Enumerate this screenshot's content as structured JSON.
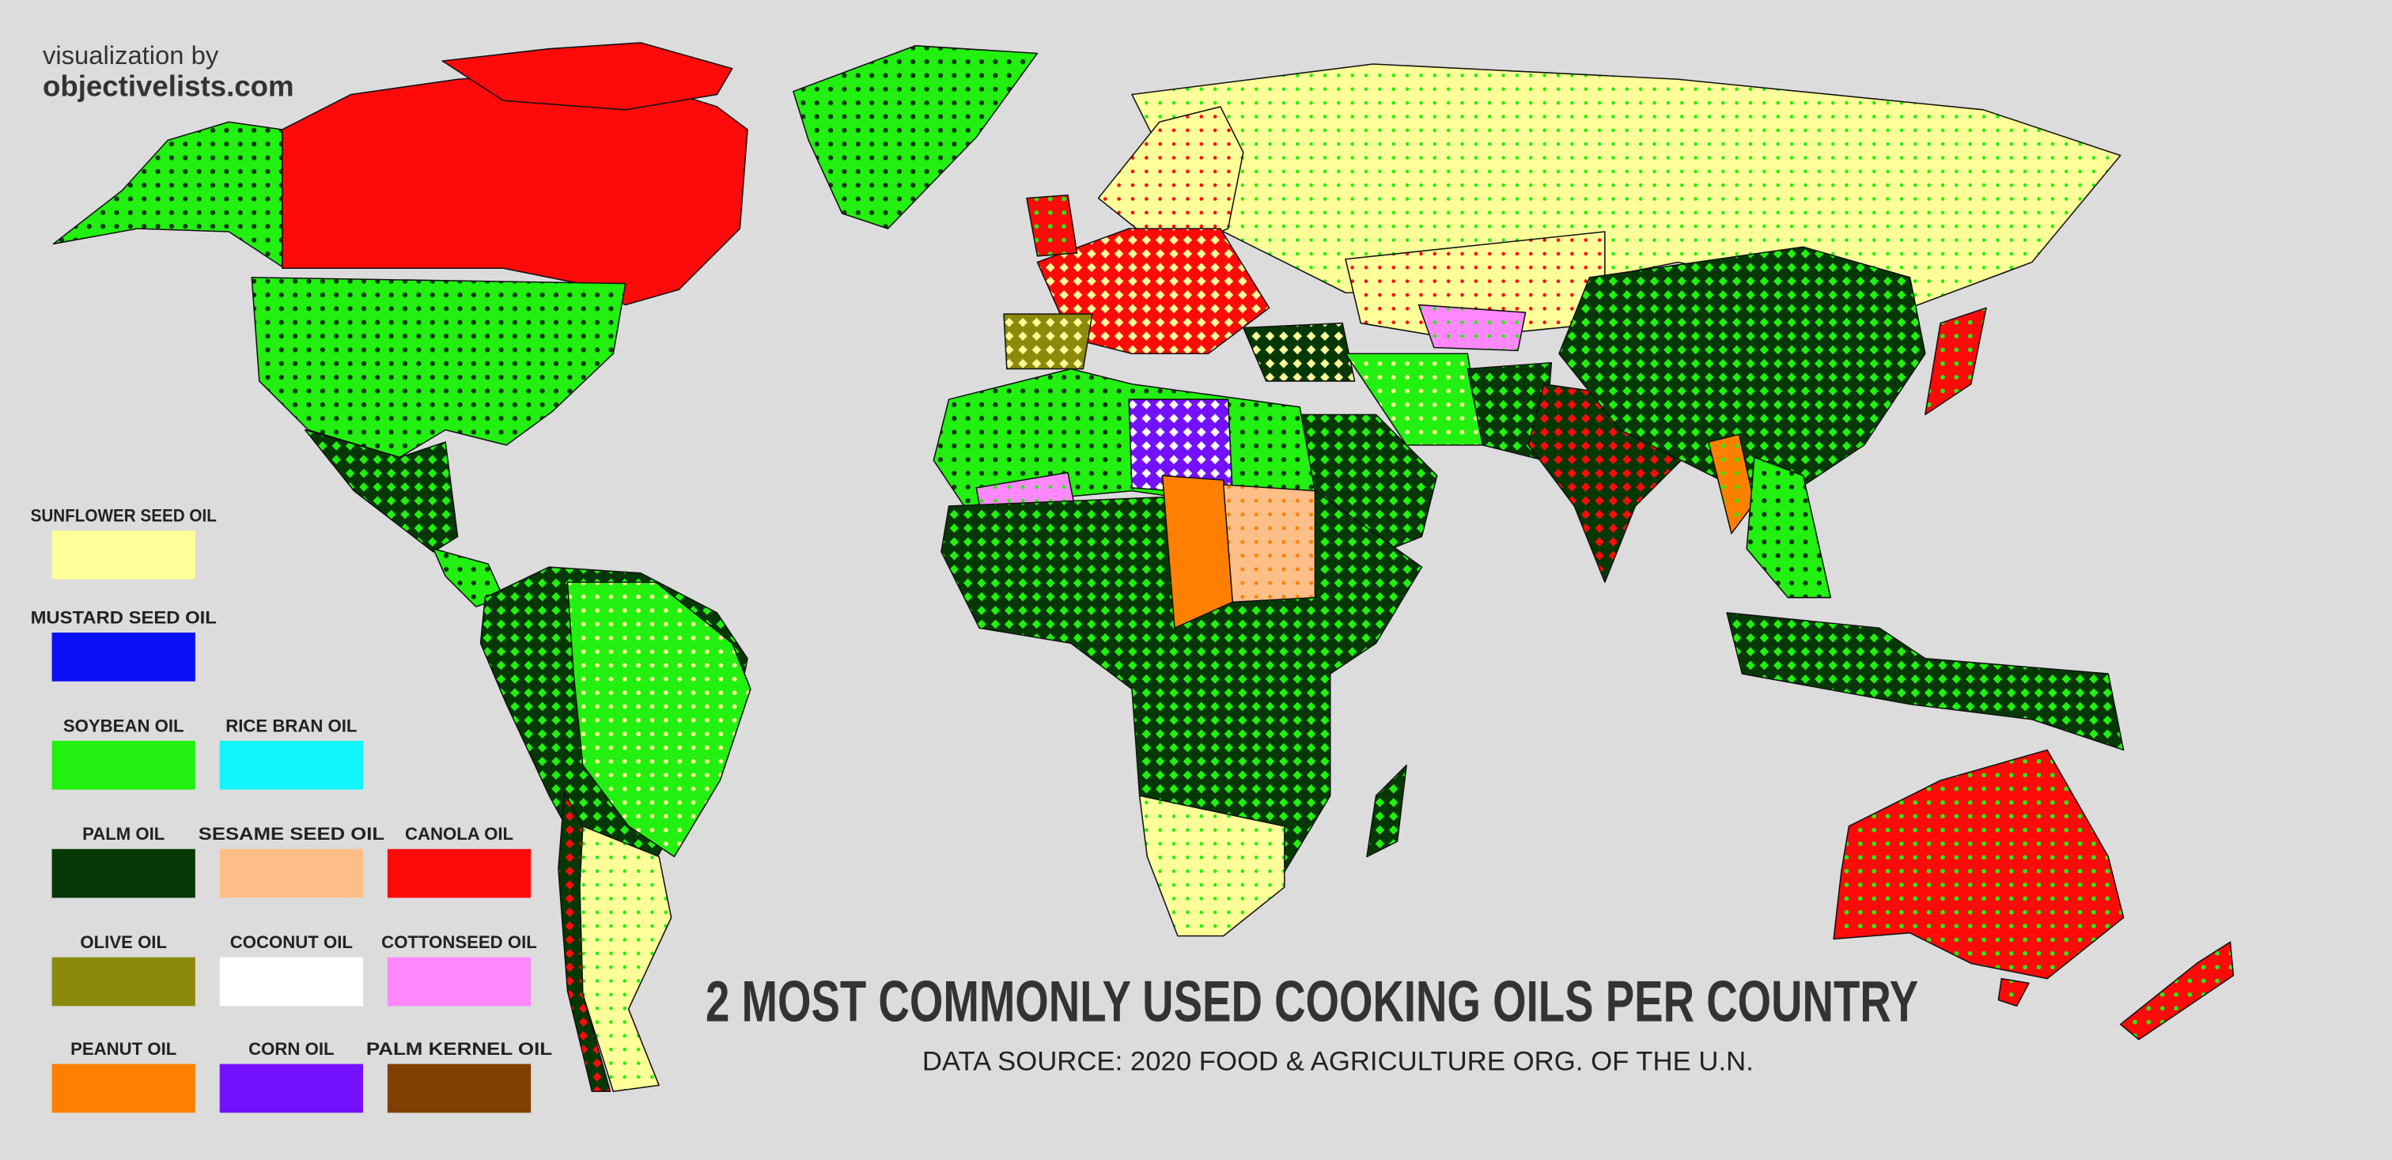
{
  "credit": {
    "line1": "visualization by",
    "line2": "objectivelists.com"
  },
  "title": "2 MOST COMMONLY USED COOKING OILS PER COUNTRY",
  "subtitle": "DATA SOURCE: 2020 FOOD & AGRICULTURE ORG. OF THE U.N.",
  "legend": [
    {
      "label": "SUNFLOWER SEED OIL",
      "color": "#ffff99"
    },
    {
      "label": "MUSTARD SEED OIL",
      "color": "#0a10f5"
    },
    {
      "label": "SOYBEAN OIL",
      "color": "#22f010"
    },
    {
      "label": "RICE BRAN OIL",
      "color": "#11f5ff"
    },
    {
      "label": "PALM OIL",
      "color": "#063806"
    },
    {
      "label": "SESAME SEED OIL",
      "color": "#fdbf87"
    },
    {
      "label": "CANOLA OIL",
      "color": "#ff0a0a"
    },
    {
      "label": "OLIVE OIL",
      "color": "#8c8a0b"
    },
    {
      "label": "COCONUT OIL",
      "color": "#ffffff"
    },
    {
      "label": "COTTONSEED OIL",
      "color": "#ff88ff"
    },
    {
      "label": "PEANUT OIL",
      "color": "#ff8000"
    },
    {
      "label": "CORN OIL",
      "color": "#7311ff"
    },
    {
      "label": "PALM KERNEL OIL",
      "color": "#7f3f00"
    }
  ]
}
